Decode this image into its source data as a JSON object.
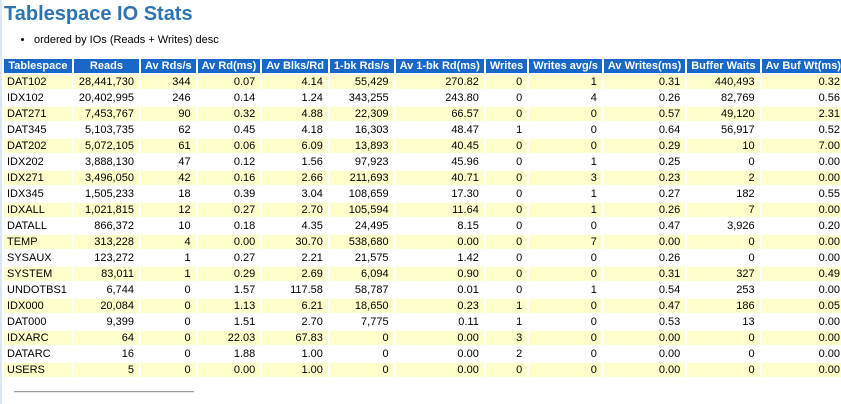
{
  "page": {
    "title": "Tablespace IO Stats",
    "notes": [
      "ordered by IOs (Reads + Writes) desc"
    ]
  },
  "colors": {
    "header_bg": "#1768c9",
    "header_text": "#ffffff",
    "row_stripe": "#ffffcc",
    "title_text": "#2e74b5",
    "rule_color": "#9a9a9a",
    "edge_strip": "#dde7f2"
  },
  "table": {
    "columns": [
      "Tablespace",
      "Reads",
      "Av Rds/s",
      "Av Rd(ms)",
      "Av Blks/Rd",
      "1-bk Rds/s",
      "Av 1-bk Rd(ms)",
      "Writes",
      "Writes avg/s",
      "Av Writes(ms)",
      "Buffer Waits",
      "Av Buf Wt(ms)"
    ],
    "rows": [
      [
        "DAT102",
        "28,441,730",
        "344",
        "0.07",
        "4.14",
        "55,429",
        "270.82",
        "0",
        "1",
        "0.31",
        "440,493",
        "0.32"
      ],
      [
        "IDX102",
        "20,402,995",
        "246",
        "0.14",
        "1.24",
        "343,255",
        "243.80",
        "0",
        "4",
        "0.26",
        "82,769",
        "0.56"
      ],
      [
        "DAT271",
        "7,453,767",
        "90",
        "0.32",
        "4.88",
        "22,309",
        "66.57",
        "0",
        "0",
        "0.57",
        "49,120",
        "2.31"
      ],
      [
        "DAT345",
        "5,103,735",
        "62",
        "0.45",
        "4.18",
        "16,303",
        "48.47",
        "1",
        "0",
        "0.64",
        "56,917",
        "0.52"
      ],
      [
        "DAT202",
        "5,072,105",
        "61",
        "0.06",
        "6.09",
        "13,893",
        "40.45",
        "0",
        "0",
        "0.29",
        "10",
        "7.00"
      ],
      [
        "IDX202",
        "3,888,130",
        "47",
        "0.12",
        "1.56",
        "97,923",
        "45.96",
        "0",
        "1",
        "0.25",
        "0",
        "0.00"
      ],
      [
        "IDX271",
        "3,496,050",
        "42",
        "0.16",
        "2.66",
        "211,693",
        "40.71",
        "0",
        "3",
        "0.23",
        "2",
        "0.00"
      ],
      [
        "IDX345",
        "1,505,233",
        "18",
        "0.39",
        "3.04",
        "108,659",
        "17.30",
        "0",
        "1",
        "0.27",
        "182",
        "0.55"
      ],
      [
        "IDXALL",
        "1,021,815",
        "12",
        "0.27",
        "2.70",
        "105,594",
        "11.64",
        "0",
        "1",
        "0.26",
        "7",
        "0.00"
      ],
      [
        "DATALL",
        "866,372",
        "10",
        "0.18",
        "4.35",
        "24,495",
        "8.15",
        "0",
        "0",
        "0.47",
        "3,926",
        "0.20"
      ],
      [
        "TEMP",
        "313,228",
        "4",
        "0.00",
        "30.70",
        "538,680",
        "0.00",
        "0",
        "7",
        "0.00",
        "0",
        "0.00"
      ],
      [
        "SYSAUX",
        "123,272",
        "1",
        "0.27",
        "2.21",
        "21,575",
        "1.42",
        "0",
        "0",
        "0.26",
        "0",
        "0.00"
      ],
      [
        "SYSTEM",
        "83,011",
        "1",
        "0.29",
        "2.69",
        "6,094",
        "0.90",
        "0",
        "0",
        "0.31",
        "327",
        "0.49"
      ],
      [
        "UNDOTBS1",
        "6,744",
        "0",
        "1.57",
        "117.58",
        "58,787",
        "0.01",
        "0",
        "1",
        "0.54",
        "253",
        "0.00"
      ],
      [
        "IDX000",
        "20,084",
        "0",
        "1.13",
        "6.21",
        "18,650",
        "0.23",
        "1",
        "0",
        "0.47",
        "186",
        "0.05"
      ],
      [
        "DAT000",
        "9,399",
        "0",
        "1.51",
        "2.70",
        "7,775",
        "0.11",
        "1",
        "0",
        "0.53",
        "13",
        "0.00"
      ],
      [
        "IDXARC",
        "64",
        "0",
        "22.03",
        "67.83",
        "0",
        "0.00",
        "3",
        "0",
        "0.00",
        "0",
        "0.00"
      ],
      [
        "DATARC",
        "16",
        "0",
        "1.88",
        "1.00",
        "0",
        "0.00",
        "2",
        "0",
        "0.00",
        "0",
        "0.00"
      ],
      [
        "USERS",
        "5",
        "0",
        "0.00",
        "1.00",
        "0",
        "0.00",
        "0",
        "0",
        "0.00",
        "0",
        "0.00"
      ]
    ]
  }
}
